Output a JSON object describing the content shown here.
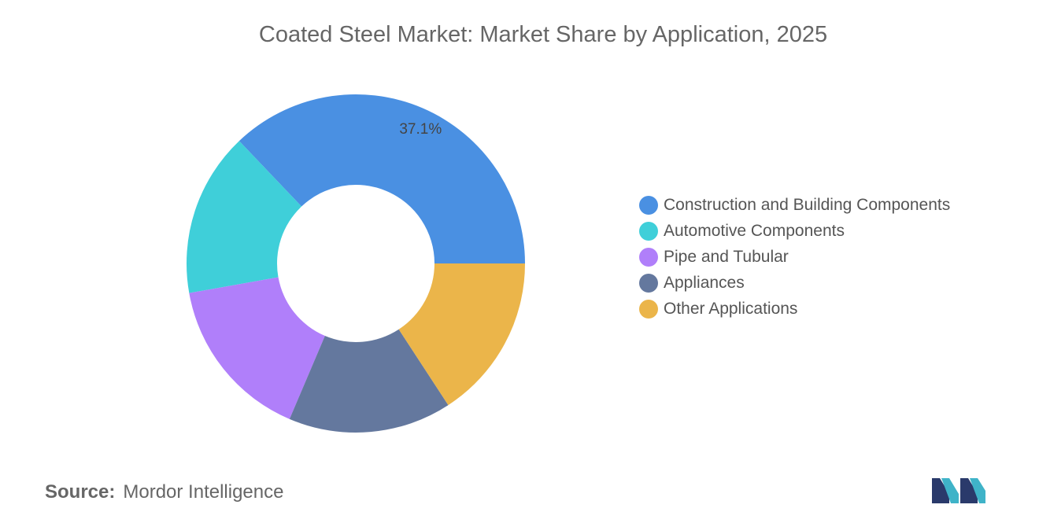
{
  "chart_data": {
    "type": "pie",
    "variant": "donut",
    "title": "Coated Steel Market: Market Share by Application, 2025",
    "categories": [
      "Construction and Building Components",
      "Automotive Components",
      "Pipe and Tubular",
      "Appliances",
      "Other Applications"
    ],
    "values": [
      37.1,
      15.7,
      15.8,
      15.6,
      15.8
    ],
    "unit": "%",
    "data_labels": [
      "37.1%",
      "",
      "",
      "",
      ""
    ],
    "colors": [
      "#4a90e2",
      "#3fcfd9",
      "#b07ffa",
      "#64789e",
      "#ebb54a"
    ],
    "legend_position": "right"
  },
  "source": {
    "label": "Source:",
    "value": "Mordor Intelligence"
  },
  "logo": {
    "text": "Mordor Intelligence"
  }
}
